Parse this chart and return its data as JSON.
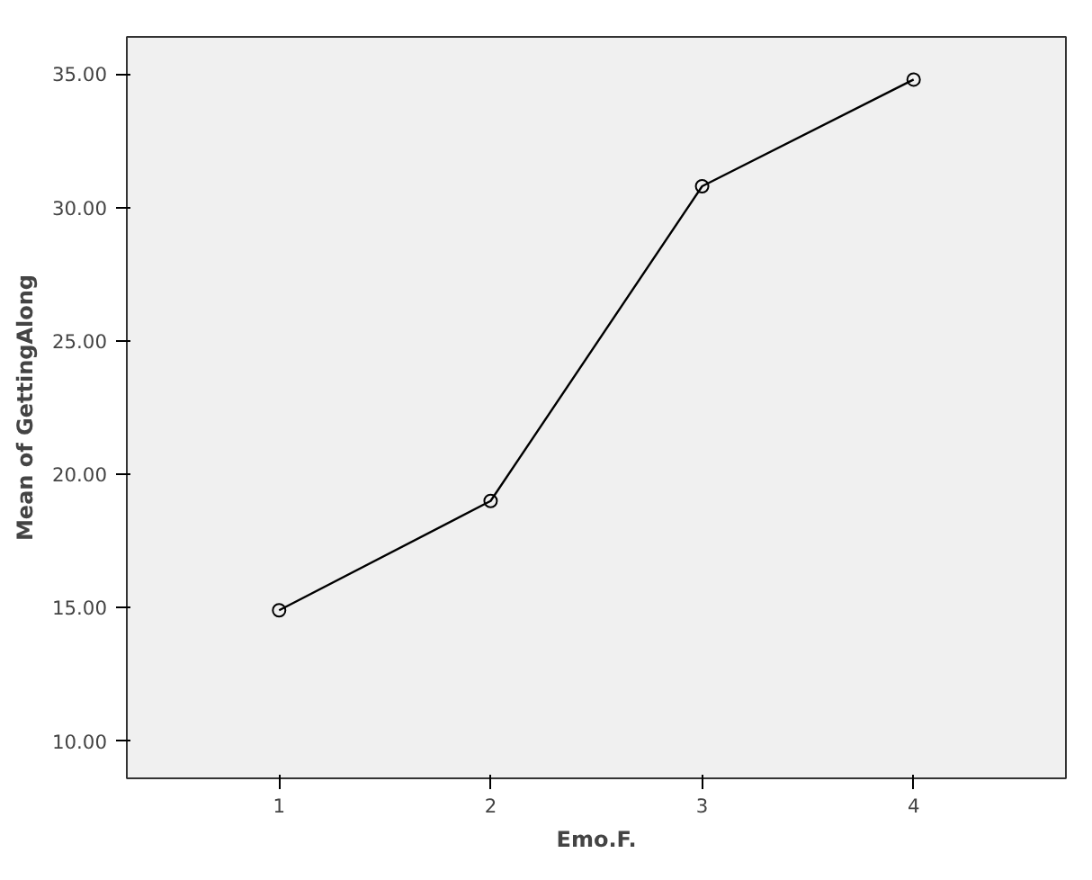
{
  "chart_data": {
    "type": "line",
    "xlabel": "Emo.F.",
    "ylabel": "Mean of GettingAlong",
    "categories": [
      "1",
      "2",
      "3",
      "4"
    ],
    "values": [
      14.9,
      19.0,
      30.8,
      34.8
    ],
    "color": "#000000",
    "marker": "circle",
    "line_style": "solid",
    "grid": false,
    "ylim": [
      8.6,
      36.4
    ],
    "yticks": [
      {
        "value": 10,
        "label": "10.00"
      },
      {
        "value": 15,
        "label": "15.00"
      },
      {
        "value": 20,
        "label": "20.00"
      },
      {
        "value": 25,
        "label": "25.00"
      },
      {
        "value": 30,
        "label": "30.00"
      },
      {
        "value": 35,
        "label": "35.00"
      }
    ]
  }
}
